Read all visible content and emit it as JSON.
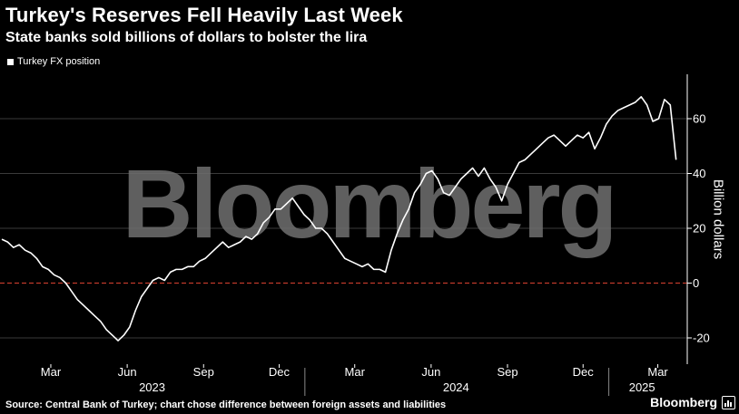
{
  "header": {
    "title": "Turkey's Reserves Fell Heavily Last Week",
    "subtitle": "State banks sold billions of dollars to bolster the lira"
  },
  "watermark": "Bloomberg",
  "footer": {
    "source": "Source: Central Bank of Turkey; chart chose difference between foreign assets and liabilities",
    "brand": "Bloomberg",
    "brand_icon": "bar-chart-icon"
  },
  "colors": {
    "background": "#000000",
    "line": "#ffffff",
    "zero_line": "#c0392b",
    "grid": "#3a3a3a",
    "watermark": "#707070"
  },
  "chart_data": {
    "type": "line",
    "title": "Turkey's Reserves Fell Heavily Last Week",
    "subtitle": "State banks sold billions of dollars to bolster the lira",
    "ylabel": "Billion dollars",
    "xlabel": "",
    "ylim": [
      -25,
      76
    ],
    "yticks": [
      -20,
      0,
      20,
      40,
      60
    ],
    "grid": true,
    "zero_line": true,
    "legend_position": "top-left",
    "x_axis": {
      "start": "2023-01-01",
      "end": "2025-03-31",
      "month_ticks": [
        {
          "label": "Mar",
          "date": "2023-03-01"
        },
        {
          "label": "Jun",
          "date": "2023-06-01"
        },
        {
          "label": "Sep",
          "date": "2023-09-01"
        },
        {
          "label": "Dec",
          "date": "2023-12-01"
        },
        {
          "label": "Mar",
          "date": "2024-03-01"
        },
        {
          "label": "Jun",
          "date": "2024-06-01"
        },
        {
          "label": "Sep",
          "date": "2024-09-01"
        },
        {
          "label": "Dec",
          "date": "2024-12-01"
        },
        {
          "label": "Mar",
          "date": "2025-03-01"
        }
      ],
      "year_labels": [
        {
          "label": "2023",
          "date": "2023-07-01"
        },
        {
          "label": "2024",
          "date": "2024-07-01"
        },
        {
          "label": "2025",
          "date": "2025-02-10"
        }
      ],
      "year_dividers": [
        "2024-01-01",
        "2025-01-01"
      ]
    },
    "series": [
      {
        "name": "Turkey FX position",
        "color": "#ffffff",
        "points": [
          [
            "2023-01-01",
            16
          ],
          [
            "2023-01-08",
            15
          ],
          [
            "2023-01-15",
            13
          ],
          [
            "2023-01-22",
            14
          ],
          [
            "2023-01-29",
            12
          ],
          [
            "2023-02-05",
            11
          ],
          [
            "2023-02-12",
            9
          ],
          [
            "2023-02-19",
            6
          ],
          [
            "2023-02-26",
            5
          ],
          [
            "2023-03-05",
            3
          ],
          [
            "2023-03-12",
            2
          ],
          [
            "2023-03-19",
            0
          ],
          [
            "2023-03-26",
            -3
          ],
          [
            "2023-04-02",
            -6
          ],
          [
            "2023-04-09",
            -8
          ],
          [
            "2023-04-16",
            -10
          ],
          [
            "2023-04-23",
            -12
          ],
          [
            "2023-04-30",
            -14
          ],
          [
            "2023-05-07",
            -17
          ],
          [
            "2023-05-14",
            -19
          ],
          [
            "2023-05-21",
            -21
          ],
          [
            "2023-05-28",
            -19
          ],
          [
            "2023-06-04",
            -16
          ],
          [
            "2023-06-11",
            -10
          ],
          [
            "2023-06-18",
            -5
          ],
          [
            "2023-06-25",
            -2
          ],
          [
            "2023-07-02",
            1
          ],
          [
            "2023-07-09",
            2
          ],
          [
            "2023-07-16",
            1
          ],
          [
            "2023-07-23",
            4
          ],
          [
            "2023-07-30",
            5
          ],
          [
            "2023-08-06",
            5
          ],
          [
            "2023-08-13",
            6
          ],
          [
            "2023-08-20",
            6
          ],
          [
            "2023-08-27",
            8
          ],
          [
            "2023-09-03",
            9
          ],
          [
            "2023-09-10",
            11
          ],
          [
            "2023-09-17",
            13
          ],
          [
            "2023-09-24",
            15
          ],
          [
            "2023-10-01",
            13
          ],
          [
            "2023-10-08",
            14
          ],
          [
            "2023-10-15",
            15
          ],
          [
            "2023-10-22",
            17
          ],
          [
            "2023-10-29",
            16
          ],
          [
            "2023-11-05",
            18
          ],
          [
            "2023-11-12",
            22
          ],
          [
            "2023-11-19",
            24
          ],
          [
            "2023-11-26",
            27
          ],
          [
            "2023-12-03",
            27
          ],
          [
            "2023-12-10",
            29
          ],
          [
            "2023-12-17",
            31
          ],
          [
            "2023-12-24",
            28
          ],
          [
            "2023-12-31",
            25
          ],
          [
            "2024-01-07",
            23
          ],
          [
            "2024-01-14",
            20
          ],
          [
            "2024-01-21",
            20
          ],
          [
            "2024-01-28",
            18
          ],
          [
            "2024-02-04",
            15
          ],
          [
            "2024-02-11",
            12
          ],
          [
            "2024-02-18",
            9
          ],
          [
            "2024-02-25",
            8
          ],
          [
            "2024-03-03",
            7
          ],
          [
            "2024-03-10",
            6
          ],
          [
            "2024-03-17",
            7
          ],
          [
            "2024-03-24",
            5
          ],
          [
            "2024-03-31",
            5
          ],
          [
            "2024-04-07",
            4
          ],
          [
            "2024-04-14",
            12
          ],
          [
            "2024-04-21",
            18
          ],
          [
            "2024-04-28",
            23
          ],
          [
            "2024-05-05",
            27
          ],
          [
            "2024-05-12",
            33
          ],
          [
            "2024-05-19",
            36
          ],
          [
            "2024-05-26",
            40
          ],
          [
            "2024-06-02",
            41
          ],
          [
            "2024-06-09",
            38
          ],
          [
            "2024-06-16",
            33
          ],
          [
            "2024-06-23",
            32
          ],
          [
            "2024-06-30",
            35
          ],
          [
            "2024-07-07",
            38
          ],
          [
            "2024-07-14",
            40
          ],
          [
            "2024-07-21",
            42
          ],
          [
            "2024-07-28",
            39
          ],
          [
            "2024-08-04",
            42
          ],
          [
            "2024-08-11",
            38
          ],
          [
            "2024-08-18",
            35
          ],
          [
            "2024-08-25",
            30
          ],
          [
            "2024-09-01",
            36
          ],
          [
            "2024-09-08",
            40
          ],
          [
            "2024-09-15",
            44
          ],
          [
            "2024-09-22",
            45
          ],
          [
            "2024-09-29",
            47
          ],
          [
            "2024-10-06",
            49
          ],
          [
            "2024-10-13",
            51
          ],
          [
            "2024-10-20",
            53
          ],
          [
            "2024-10-27",
            54
          ],
          [
            "2024-11-03",
            52
          ],
          [
            "2024-11-10",
            50
          ],
          [
            "2024-11-17",
            52
          ],
          [
            "2024-11-24",
            54
          ],
          [
            "2024-12-01",
            53
          ],
          [
            "2024-12-08",
            55
          ],
          [
            "2024-12-15",
            49
          ],
          [
            "2024-12-22",
            53
          ],
          [
            "2024-12-29",
            58
          ],
          [
            "2025-01-05",
            61
          ],
          [
            "2025-01-12",
            63
          ],
          [
            "2025-01-19",
            64
          ],
          [
            "2025-01-26",
            65
          ],
          [
            "2025-02-02",
            66
          ],
          [
            "2025-02-09",
            68
          ],
          [
            "2025-02-16",
            65
          ],
          [
            "2025-02-23",
            59
          ],
          [
            "2025-03-02",
            60
          ],
          [
            "2025-03-09",
            67
          ],
          [
            "2025-03-16",
            65
          ],
          [
            "2025-03-23",
            45
          ]
        ]
      }
    ]
  }
}
